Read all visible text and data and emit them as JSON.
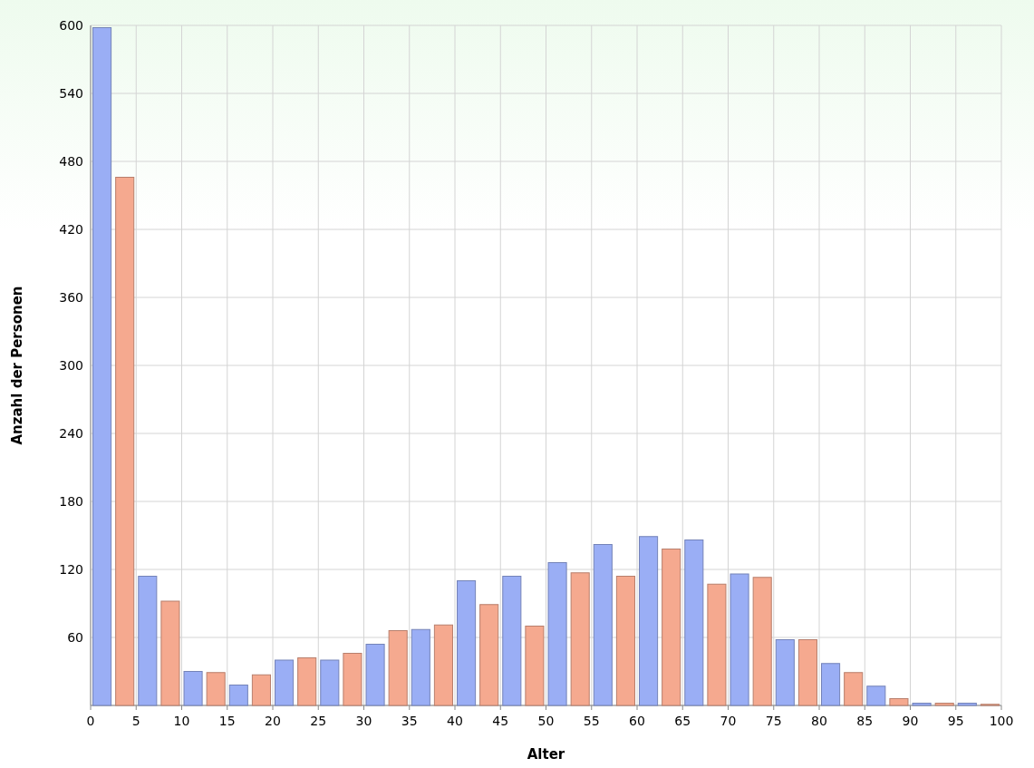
{
  "chart_data": {
    "type": "histogram",
    "xlabel": "Alter",
    "ylabel": "Anzahl der Personen",
    "bins": [
      0,
      2.5,
      5,
      7.5,
      10,
      12.5,
      15,
      17.5,
      20,
      22.5,
      25,
      27.5,
      30,
      32.5,
      35,
      37.5,
      40,
      42.5,
      45,
      47.5,
      50,
      52.5,
      55,
      57.5,
      60,
      62.5,
      65,
      67.5,
      70,
      72.5,
      75,
      77.5,
      80,
      82.5,
      85,
      87.5,
      90,
      92.5,
      95,
      97.5,
      100
    ],
    "values": [
      598,
      466,
      114,
      92,
      30,
      29,
      18,
      27,
      40,
      42,
      40,
      46,
      54,
      66,
      67,
      71,
      110,
      89,
      114,
      70,
      126,
      117,
      142,
      114,
      149,
      138,
      146,
      107,
      116,
      113,
      58,
      58,
      37,
      29,
      17,
      6,
      2,
      2,
      2,
      1
    ],
    "colors": [
      "#9aaef5",
      "#f5a98f",
      "#9aaef5",
      "#f5a98f",
      "#9aaef5",
      "#f5a98f",
      "#9aaef5",
      "#f5a98f",
      "#9aaef5",
      "#f5a98f",
      "#9aaef5",
      "#f5a98f",
      "#9aaef5",
      "#f5a98f",
      "#9aaef5",
      "#f5a98f",
      "#9aaef5",
      "#f5a98f",
      "#9aaef5",
      "#f5a98f",
      "#9aaef5",
      "#f5a98f",
      "#9aaef5",
      "#f5a98f",
      "#9aaef5",
      "#f5a98f",
      "#9aaef5",
      "#f5a98f",
      "#9aaef5",
      "#f5a98f",
      "#9aaef5",
      "#f5a98f",
      "#9aaef5",
      "#f5a98f",
      "#9aaef5",
      "#f5a98f",
      "#9aaef5",
      "#f5a98f",
      "#9aaef5",
      "#f5a98f"
    ],
    "xlim": [
      0,
      100
    ],
    "xticks": [
      0,
      5,
      10,
      15,
      20,
      25,
      30,
      35,
      40,
      45,
      50,
      55,
      60,
      65,
      70,
      75,
      80,
      85,
      90,
      95,
      100
    ],
    "ylim": [
      0,
      600
    ],
    "yticks": [
      {
        "value": 0,
        "label": null
      },
      60,
      120,
      180,
      240,
      300,
      360,
      420,
      480,
      540,
      600
    ],
    "grid": true
  }
}
